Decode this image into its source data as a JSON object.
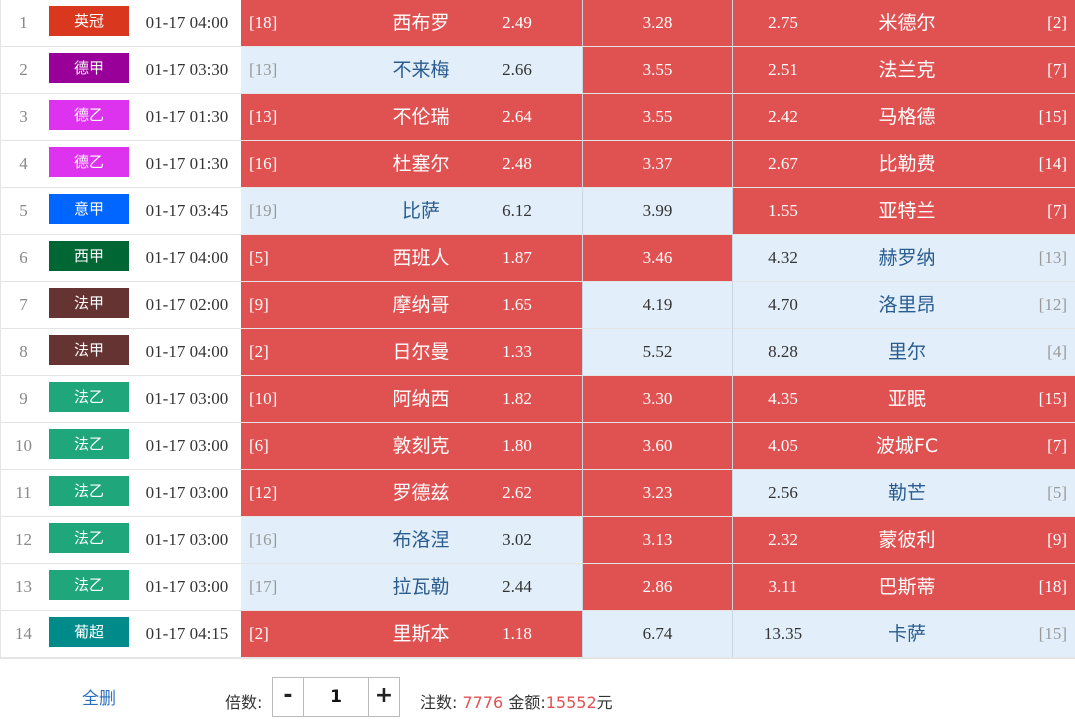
{
  "colors": {
    "selected": "#e05252",
    "unselected": "#e2effa",
    "link": "#2b6fbe"
  },
  "matches": [
    {
      "idx": "1",
      "league": "英冠",
      "league_color": "#d9381e",
      "time": "01-17 04:00",
      "home_rank": "[18]",
      "home": "西布罗",
      "home_odd": "2.49",
      "draw_odd": "3.28",
      "away_odd": "2.75",
      "away": "米德尔",
      "away_rank": "[2]",
      "sel": {
        "home": true,
        "draw": true,
        "away": true
      }
    },
    {
      "idx": "2",
      "league": "德甲",
      "league_color": "#990099",
      "time": "01-17 03:30",
      "home_rank": "[13]",
      "home": "不来梅",
      "home_odd": "2.66",
      "draw_odd": "3.55",
      "away_odd": "2.51",
      "away": "法兰克",
      "away_rank": "[7]",
      "sel": {
        "home": false,
        "draw": true,
        "away": true
      }
    },
    {
      "idx": "3",
      "league": "德乙",
      "league_color": "#dd33ee",
      "time": "01-17 01:30",
      "home_rank": "[13]",
      "home": "不伦瑞",
      "home_odd": "2.64",
      "draw_odd": "3.55",
      "away_odd": "2.42",
      "away": "马格德",
      "away_rank": "[15]",
      "sel": {
        "home": true,
        "draw": true,
        "away": true
      }
    },
    {
      "idx": "4",
      "league": "德乙",
      "league_color": "#dd33ee",
      "time": "01-17 01:30",
      "home_rank": "[16]",
      "home": "杜塞尔",
      "home_odd": "2.48",
      "draw_odd": "3.37",
      "away_odd": "2.67",
      "away": "比勒费",
      "away_rank": "[14]",
      "sel": {
        "home": true,
        "draw": true,
        "away": true
      }
    },
    {
      "idx": "5",
      "league": "意甲",
      "league_color": "#0066ff",
      "time": "01-17 03:45",
      "home_rank": "[19]",
      "home": "比萨",
      "home_odd": "6.12",
      "draw_odd": "3.99",
      "away_odd": "1.55",
      "away": "亚特兰",
      "away_rank": "[7]",
      "sel": {
        "home": false,
        "draw": false,
        "away": true
      }
    },
    {
      "idx": "6",
      "league": "西甲",
      "league_color": "#006633",
      "time": "01-17 04:00",
      "home_rank": "[5]",
      "home": "西班人",
      "home_odd": "1.87",
      "draw_odd": "3.46",
      "away_odd": "4.32",
      "away": "赫罗纳",
      "away_rank": "[13]",
      "sel": {
        "home": true,
        "draw": true,
        "away": false
      }
    },
    {
      "idx": "7",
      "league": "法甲",
      "league_color": "#663333",
      "time": "01-17 02:00",
      "home_rank": "[9]",
      "home": "摩纳哥",
      "home_odd": "1.65",
      "draw_odd": "4.19",
      "away_odd": "4.70",
      "away": "洛里昂",
      "away_rank": "[12]",
      "sel": {
        "home": true,
        "draw": false,
        "away": false
      }
    },
    {
      "idx": "8",
      "league": "法甲",
      "league_color": "#663333",
      "time": "01-17 04:00",
      "home_rank": "[2]",
      "home": "日尔曼",
      "home_odd": "1.33",
      "draw_odd": "5.52",
      "away_odd": "8.28",
      "away": "里尔",
      "away_rank": "[4]",
      "sel": {
        "home": true,
        "draw": false,
        "away": false
      }
    },
    {
      "idx": "9",
      "league": "法乙",
      "league_color": "#1fa67a",
      "time": "01-17 03:00",
      "home_rank": "[10]",
      "home": "阿纳西",
      "home_odd": "1.82",
      "draw_odd": "3.30",
      "away_odd": "4.35",
      "away": "亚眠",
      "away_rank": "[15]",
      "sel": {
        "home": true,
        "draw": true,
        "away": true
      }
    },
    {
      "idx": "10",
      "league": "法乙",
      "league_color": "#1fa67a",
      "time": "01-17 03:00",
      "home_rank": "[6]",
      "home": "敦刻克",
      "home_odd": "1.80",
      "draw_odd": "3.60",
      "away_odd": "4.05",
      "away": "波城FC",
      "away_rank": "[7]",
      "sel": {
        "home": true,
        "draw": true,
        "away": true
      }
    },
    {
      "idx": "11",
      "league": "法乙",
      "league_color": "#1fa67a",
      "time": "01-17 03:00",
      "home_rank": "[12]",
      "home": "罗德兹",
      "home_odd": "2.62",
      "draw_odd": "3.23",
      "away_odd": "2.56",
      "away": "勒芒",
      "away_rank": "[5]",
      "sel": {
        "home": true,
        "draw": true,
        "away": false
      }
    },
    {
      "idx": "12",
      "league": "法乙",
      "league_color": "#1fa67a",
      "time": "01-17 03:00",
      "home_rank": "[16]",
      "home": "布洛涅",
      "home_odd": "3.02",
      "draw_odd": "3.13",
      "away_odd": "2.32",
      "away": "蒙彼利",
      "away_rank": "[9]",
      "sel": {
        "home": false,
        "draw": true,
        "away": true
      }
    },
    {
      "idx": "13",
      "league": "法乙",
      "league_color": "#1fa67a",
      "time": "01-17 03:00",
      "home_rank": "[17]",
      "home": "拉瓦勒",
      "home_odd": "2.44",
      "draw_odd": "2.86",
      "away_odd": "3.11",
      "away": "巴斯蒂",
      "away_rank": "[18]",
      "sel": {
        "home": false,
        "draw": true,
        "away": true
      }
    },
    {
      "idx": "14",
      "league": "葡超",
      "league_color": "#008b8b",
      "time": "01-17 04:15",
      "home_rank": "[2]",
      "home": "里斯本",
      "home_odd": "1.18",
      "draw_odd": "6.74",
      "away_odd": "13.35",
      "away": "卡萨",
      "away_rank": "[15]",
      "sel": {
        "home": true,
        "draw": false,
        "away": false
      }
    }
  ],
  "footer": {
    "clear_all": "全删",
    "multiplier_label": "倍数:",
    "minus": "-",
    "plus": "+",
    "multiplier_value": "1",
    "bets_label": "注数:",
    "bets_value": "7776",
    "amount_label": "金额:",
    "amount_value": "15552",
    "currency": "元"
  }
}
